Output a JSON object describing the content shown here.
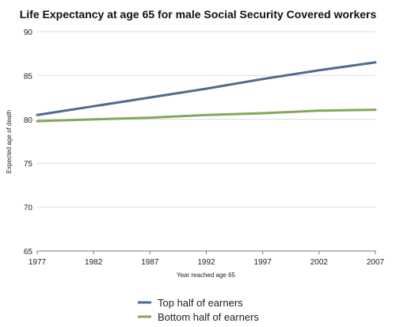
{
  "chart_data": {
    "type": "line",
    "title": "Life Expectancy at age 65 for male Social Security Covered workers",
    "xlabel": "Year reached age 65",
    "ylabel": "Expected age of death",
    "x": [
      1977,
      1982,
      1987,
      1992,
      1997,
      2002,
      2007
    ],
    "ylim": [
      65,
      90
    ],
    "yticks": [
      65,
      70,
      75,
      80,
      85,
      90
    ],
    "grid": true,
    "legend_position": "bottom",
    "series": [
      {
        "name": "Top half of earners",
        "color": "#4e6b8c",
        "values": [
          80.5,
          81.5,
          82.5,
          83.5,
          84.6,
          85.6,
          86.5
        ]
      },
      {
        "name": "Bottom half of earners",
        "color": "#84a75a",
        "values": [
          79.8,
          80.0,
          80.2,
          80.5,
          80.7,
          81.0,
          81.1
        ]
      }
    ]
  }
}
